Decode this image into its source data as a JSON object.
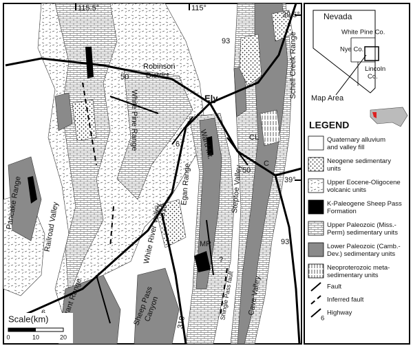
{
  "map": {
    "coordinates": [
      "115.5°",
      "115°",
      "39.5°",
      "39°"
    ],
    "highways": [
      "93",
      "50",
      "50",
      "6",
      "318",
      "93",
      "6",
      "318"
    ],
    "places": {
      "robinson": [
        "Robinson",
        "District"
      ],
      "ely": "Ely",
      "white_pine": "White Pine Range",
      "ward": "Ward Mt.",
      "egan": "Egan Range",
      "steptoe": "Steptoe Valley",
      "schell": "Schell Creek Range",
      "pancake": "Pancake Range",
      "railroad": "Railroad Valley",
      "white_river": "White River Valley",
      "grant": "Grant Range",
      "sheep_pass": [
        "Sheep Pass",
        "Canyon"
      ],
      "cave": "Cave Valley",
      "shingle": "Shingle Pass fault",
      "mr": "MR",
      "cl": "CL",
      "c": "C",
      "question": "?"
    },
    "scale": {
      "title": "Scale(km)",
      "ticks": [
        "0",
        "10",
        "20"
      ]
    }
  },
  "inset": {
    "title": "Nevada",
    "white_pine": "White Pine Co.",
    "nye": "Nye Co.",
    "lincoln": [
      "Lincoln",
      "Co."
    ],
    "map_area": "Map Area"
  },
  "legend": {
    "title": "LEGEND",
    "units": [
      {
        "lines": [
          "Quaternary alluvium",
          "and valley fill"
        ]
      },
      {
        "lines": [
          "Neogene sedimentary",
          "units"
        ]
      },
      {
        "lines": [
          "Upper Eocene-Oligocene",
          "volcanic units"
        ]
      },
      {
        "lines": [
          "K-Paleogene Sheep Pass",
          "Formation"
        ]
      },
      {
        "lines": [
          "Upper Paleozoic (Miss.-",
          "Perm) sedimentary units"
        ]
      },
      {
        "lines": [
          "Lower Paleozoic (Camb.-",
          "Dev.) sedimentary units"
        ]
      },
      {
        "lines": [
          "Neoproterozoic meta-",
          "sedimentary units"
        ]
      }
    ],
    "structures": [
      "Fault",
      "Inferred fault",
      "Highway"
    ],
    "highway_number": "6"
  }
}
